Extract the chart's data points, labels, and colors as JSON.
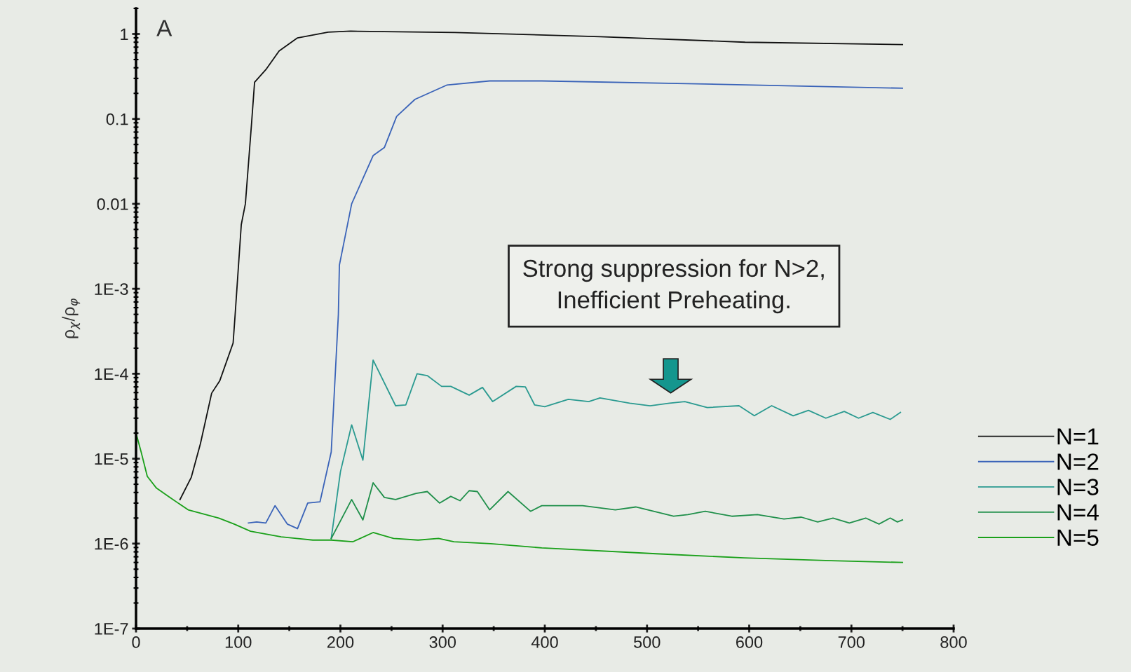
{
  "chart_data": {
    "type": "line",
    "ylabel": "ρ$_{χ}$/ρ$_{φ}$",
    "log": "y",
    "xlim": [
      0,
      800
    ],
    "ylim": [
      1e-07,
      2
    ],
    "xticks": [
      0,
      {
        "value": 50,
        "label": null
      },
      100,
      {
        "value": 150,
        "label": null
      },
      200,
      {
        "value": 250,
        "label": null
      },
      300,
      {
        "value": 350,
        "label": null
      },
      400,
      {
        "value": 450,
        "label": null
      },
      500,
      {
        "value": 550,
        "label": null
      },
      600,
      {
        "value": 650,
        "label": null
      },
      700,
      {
        "value": 750,
        "label": null
      },
      800
    ],
    "yticks": [
      {
        "value": 1e-07,
        "label": "1E-7"
      },
      {
        "value": 1e-06,
        "label": "1E-6"
      },
      {
        "value": 1e-05,
        "label": "1E-5"
      },
      {
        "value": 0.0001,
        "label": "1E-4"
      },
      {
        "value": 0.001,
        "label": "1E-3"
      },
      {
        "value": 0.01,
        "label": "0.01"
      },
      {
        "value": 0.1,
        "label": "0.1"
      },
      {
        "value": 1,
        "label": "1"
      }
    ],
    "grid": false,
    "legend": "right",
    "marker": "none",
    "line_style": "solid",
    "annotations": [
      "A",
      "Strong suppression for N>2,\nInefficient Preheating."
    ],
    "series": [
      {
        "name": "N=1",
        "color": "#111111",
        "x": [
          43,
          54,
          63,
          74,
          82,
          95,
          97,
          103,
          107,
          113,
          116,
          127,
          140,
          158,
          188,
          210,
          312,
          454,
          596,
          750
        ],
        "values": [
          3.3e-06,
          6e-06,
          1.5e-05,
          5.9e-05,
          8.3e-05,
          0.00023,
          0.0005,
          0.0057,
          0.01,
          0.087,
          0.27,
          0.38,
          0.63,
          0.9,
          1.05,
          1.08,
          1.04,
          0.93,
          0.8,
          0.75
        ]
      },
      {
        "name": "N=2",
        "color": "#3a63b8",
        "x": [
          110,
          118,
          127,
          136,
          148,
          158,
          168,
          180,
          191,
          198,
          199,
          211,
          232,
          243,
          255,
          273,
          304,
          346,
          397,
          539,
          750
        ],
        "values": [
          1.75e-06,
          1.8e-06,
          1.75e-06,
          2.8e-06,
          1.7e-06,
          1.5e-06,
          3e-06,
          3.1e-06,
          1.2e-05,
          0.0005,
          0.0019,
          0.01,
          0.037,
          0.046,
          0.107,
          0.17,
          0.25,
          0.28,
          0.28,
          0.26,
          0.23
        ]
      },
      {
        "name": "N=3",
        "color": "#2a9a90",
        "x": [
          191,
          200,
          211,
          222,
          232,
          254,
          264,
          275,
          285,
          299,
          308,
          326,
          339,
          349,
          372,
          381,
          390,
          400,
          423,
          443,
          454,
          483,
          503,
          522,
          537,
          559,
          590,
          605,
          622,
          643,
          658,
          675,
          693,
          707,
          721,
          738,
          748
        ],
        "values": [
          1.15e-06,
          7e-06,
          2.5e-05,
          9.6e-06,
          0.000145,
          4.2e-05,
          4.3e-05,
          0.0001,
          9.5e-05,
          7.1e-05,
          7.1e-05,
          5.6e-05,
          6.9e-05,
          4.7e-05,
          7.1e-05,
          7e-05,
          4.3e-05,
          4.1e-05,
          5e-05,
          4.7e-05,
          5.2e-05,
          4.5e-05,
          4.2e-05,
          4.5e-05,
          4.7e-05,
          4e-05,
          4.2e-05,
          3.2e-05,
          4.2e-05,
          3.2e-05,
          3.7e-05,
          3e-05,
          3.6e-05,
          3e-05,
          3.5e-05,
          2.9e-05,
          3.5e-05
        ]
      },
      {
        "name": "N=4",
        "color": "#1f8f4a",
        "x": [
          191,
          211,
          222,
          232,
          243,
          254,
          274,
          285,
          297,
          308,
          317,
          326,
          334,
          346,
          364,
          386,
          397,
          437,
          469,
          489,
          526,
          540,
          557,
          583,
          608,
          634,
          651,
          667,
          682,
          698,
          714,
          727,
          738,
          745,
          750
        ],
        "values": [
          1.15e-06,
          3.3e-06,
          1.9e-06,
          5.2e-06,
          3.5e-06,
          3.3e-06,
          3.9e-06,
          4.1e-06,
          3e-06,
          3.6e-06,
          3.2e-06,
          4.2e-06,
          4.1e-06,
          2.5e-06,
          4.1e-06,
          2.4e-06,
          2.8e-06,
          2.8e-06,
          2.5e-06,
          2.7e-06,
          2.1e-06,
          2.2e-06,
          2.4e-06,
          2.1e-06,
          2.2e-06,
          1.95e-06,
          2.05e-06,
          1.8e-06,
          2e-06,
          1.75e-06,
          2e-06,
          1.7e-06,
          2e-06,
          1.8e-06,
          1.9e-06
        ]
      },
      {
        "name": "N=5",
        "color": "#1aa01a",
        "x": [
          0,
          5,
          11,
          20,
          33,
          51,
          81,
          96,
          112,
          142,
          157,
          173,
          191,
          212,
          232,
          252,
          276,
          296,
          311,
          347,
          397,
          509,
          595,
          680,
          750
        ],
        "values": [
          2e-05,
          1.2e-05,
          6.2e-06,
          4.5e-06,
          3.5e-06,
          2.5e-06,
          2e-06,
          1.7e-06,
          1.4e-06,
          1.2e-06,
          1.15e-06,
          1.1e-06,
          1.1e-06,
          1.05e-06,
          1.35e-06,
          1.15e-06,
          1.1e-06,
          1.15e-06,
          1.05e-06,
          1e-06,
          8.9e-07,
          7.6e-07,
          6.8e-07,
          6.3e-07,
          6e-07
        ]
      }
    ]
  }
}
